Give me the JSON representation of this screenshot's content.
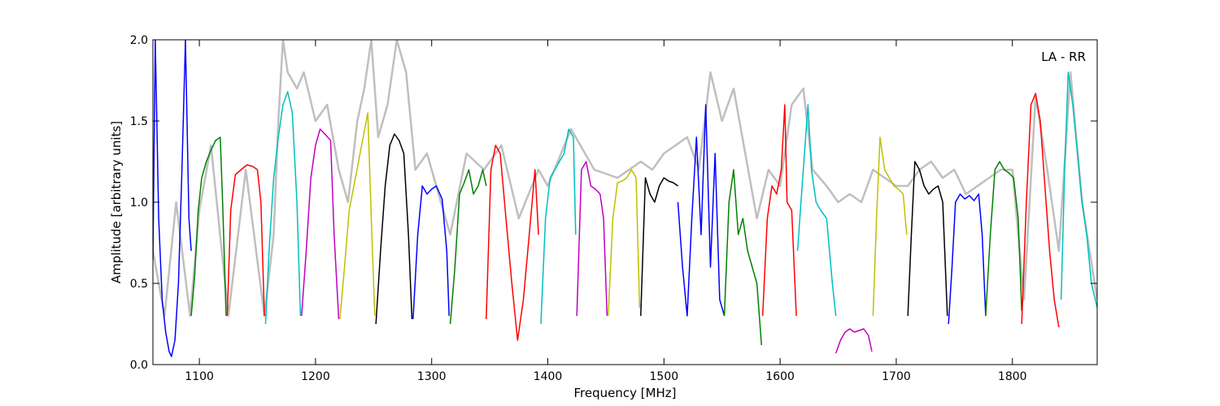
{
  "chart_data": {
    "type": "line",
    "title": "",
    "annotation": "LA - RR",
    "xlabel": "Frequency [MHz]",
    "ylabel": "Amplitude [arbitrary units]",
    "xlim": [
      1060,
      1873
    ],
    "ylim": [
      0.0,
      2.0
    ],
    "xticks": [
      1100,
      1200,
      1300,
      1400,
      1500,
      1600,
      1700,
      1800
    ],
    "yticks": [
      0.0,
      0.5,
      1.0,
      1.5,
      2.0
    ],
    "grid": false,
    "colors": {
      "background_trace": "#bfbfbf",
      "blue": "#0000ff",
      "green": "#008000",
      "red": "#ff0000",
      "cyan": "#00bfbf",
      "magenta": "#bf00bf",
      "yellow": "#bfbf00",
      "black": "#000000"
    },
    "series": [
      {
        "color": "blue",
        "x": [
          1060,
          1062,
          1065,
          1068,
          1071,
          1074,
          1076,
          1079,
          1082,
          1085,
          1088,
          1091,
          1093
        ],
        "y": [
          0.65,
          2.0,
          0.9,
          0.4,
          0.2,
          0.08,
          0.05,
          0.15,
          0.5,
          1.2,
          2.0,
          0.9,
          0.7
        ]
      },
      {
        "color": "green",
        "x": [
          1093,
          1096,
          1099,
          1102,
          1106,
          1110,
          1114,
          1118,
          1120,
          1123
        ],
        "y": [
          0.3,
          0.55,
          0.95,
          1.15,
          1.25,
          1.32,
          1.38,
          1.4,
          1.0,
          0.3
        ]
      },
      {
        "color": "red",
        "x": [
          1124,
          1127,
          1131,
          1136,
          1141,
          1146,
          1150,
          1153,
          1156
        ],
        "y": [
          0.3,
          0.95,
          1.17,
          1.2,
          1.23,
          1.22,
          1.2,
          1.0,
          0.3
        ]
      },
      {
        "color": "cyan",
        "x": [
          1157,
          1160,
          1164,
          1168,
          1172,
          1176,
          1180,
          1184,
          1187
        ],
        "y": [
          0.25,
          0.7,
          1.15,
          1.4,
          1.6,
          1.68,
          1.55,
          1.0,
          0.3
        ]
      },
      {
        "color": "magenta",
        "x": [
          1188,
          1192,
          1196,
          1200,
          1204,
          1208,
          1213,
          1216,
          1220
        ],
        "y": [
          0.3,
          0.7,
          1.15,
          1.35,
          1.45,
          1.42,
          1.38,
          0.8,
          0.28
        ]
      },
      {
        "color": "yellow",
        "x": [
          1221,
          1225,
          1229,
          1233,
          1237,
          1241,
          1245,
          1248,
          1251
        ],
        "y": [
          0.28,
          0.6,
          0.95,
          1.1,
          1.25,
          1.4,
          1.55,
          0.9,
          0.3
        ]
      },
      {
        "color": "black",
        "x": [
          1252,
          1256,
          1260,
          1264,
          1268,
          1272,
          1276,
          1280,
          1283
        ],
        "y": [
          0.25,
          0.7,
          1.1,
          1.35,
          1.42,
          1.38,
          1.3,
          0.8,
          0.28
        ]
      },
      {
        "color": "blue",
        "x": [
          1284,
          1288,
          1292,
          1296,
          1300,
          1304,
          1309,
          1313,
          1315
        ],
        "y": [
          0.28,
          0.8,
          1.1,
          1.05,
          1.08,
          1.1,
          1.02,
          0.7,
          0.3
        ]
      },
      {
        "color": "green",
        "x": [
          1316,
          1320,
          1324,
          1328,
          1332,
          1336,
          1340,
          1344,
          1347
        ],
        "y": [
          0.25,
          0.6,
          1.05,
          1.12,
          1.2,
          1.05,
          1.1,
          1.2,
          1.1
        ]
      },
      {
        "color": "red",
        "x": [
          1347,
          1351,
          1355,
          1359,
          1364,
          1369,
          1374,
          1379,
          1384,
          1389,
          1392
        ],
        "y": [
          0.28,
          1.2,
          1.35,
          1.3,
          0.9,
          0.5,
          0.15,
          0.4,
          0.8,
          1.2,
          0.8
        ]
      },
      {
        "color": "cyan",
        "x": [
          1394,
          1398,
          1402,
          1406,
          1410,
          1414,
          1418,
          1422,
          1424
        ],
        "y": [
          0.25,
          0.9,
          1.15,
          1.2,
          1.25,
          1.3,
          1.45,
          1.4,
          0.8
        ]
      },
      {
        "color": "magenta",
        "x": [
          1425,
          1429,
          1433,
          1437,
          1441,
          1445,
          1448,
          1451
        ],
        "y": [
          0.3,
          1.2,
          1.25,
          1.1,
          1.08,
          1.05,
          0.9,
          0.3
        ]
      },
      {
        "color": "yellow",
        "x": [
          1452,
          1456,
          1460,
          1464,
          1468,
          1472,
          1476,
          1479
        ],
        "y": [
          0.3,
          0.9,
          1.12,
          1.13,
          1.15,
          1.2,
          1.15,
          0.35
        ]
      },
      {
        "color": "black",
        "x": [
          1480,
          1484,
          1488,
          1492,
          1496,
          1500,
          1504,
          1508,
          1512
        ],
        "y": [
          0.3,
          1.15,
          1.05,
          1.0,
          1.1,
          1.15,
          1.13,
          1.12,
          1.1
        ]
      },
      {
        "color": "blue",
        "x": [
          1512,
          1516,
          1520,
          1524,
          1528,
          1532,
          1536,
          1540,
          1544,
          1548,
          1552
        ],
        "y": [
          1.0,
          0.6,
          0.3,
          0.9,
          1.4,
          0.8,
          1.6,
          0.6,
          1.3,
          0.4,
          0.3
        ]
      },
      {
        "color": "green",
        "x": [
          1552,
          1556,
          1560,
          1564,
          1568,
          1572,
          1576,
          1580,
          1584
        ],
        "y": [
          0.3,
          1.0,
          1.2,
          0.8,
          0.9,
          0.7,
          0.6,
          0.5,
          0.12
        ]
      },
      {
        "color": "red",
        "x": [
          1585,
          1589,
          1593,
          1597,
          1601,
          1604,
          1606,
          1610,
          1614
        ],
        "y": [
          0.3,
          0.9,
          1.1,
          1.05,
          1.2,
          1.6,
          1.0,
          0.95,
          0.3
        ]
      },
      {
        "color": "cyan",
        "x": [
          1615,
          1618,
          1621,
          1624,
          1627,
          1631,
          1635,
          1640,
          1645,
          1648
        ],
        "y": [
          0.7,
          1.0,
          1.3,
          1.6,
          1.2,
          1.0,
          0.95,
          0.9,
          0.5,
          0.3
        ]
      },
      {
        "color": "magenta",
        "x": [
          1648,
          1652,
          1656,
          1660,
          1664,
          1668,
          1672,
          1676,
          1679
        ],
        "y": [
          0.07,
          0.15,
          0.2,
          0.22,
          0.2,
          0.21,
          0.22,
          0.18,
          0.08
        ]
      },
      {
        "color": "yellow",
        "x": [
          1680,
          1683,
          1686,
          1690,
          1694,
          1698,
          1702,
          1706,
          1709
        ],
        "y": [
          0.3,
          0.9,
          1.4,
          1.2,
          1.15,
          1.1,
          1.08,
          1.05,
          0.8
        ]
      },
      {
        "color": "black",
        "x": [
          1710,
          1713,
          1716,
          1720,
          1724,
          1728,
          1732,
          1736,
          1740,
          1744
        ],
        "y": [
          0.3,
          0.8,
          1.25,
          1.2,
          1.1,
          1.05,
          1.08,
          1.1,
          1.0,
          0.3
        ]
      },
      {
        "color": "blue",
        "x": [
          1745,
          1748,
          1751,
          1755,
          1759,
          1763,
          1767,
          1771,
          1774,
          1777
        ],
        "y": [
          0.25,
          0.6,
          1.0,
          1.05,
          1.02,
          1.04,
          1.01,
          1.05,
          0.8,
          0.3
        ]
      },
      {
        "color": "green",
        "x": [
          1777,
          1781,
          1785,
          1789,
          1793,
          1797,
          1801,
          1805,
          1808
        ],
        "y": [
          0.3,
          0.8,
          1.2,
          1.25,
          1.2,
          1.18,
          1.15,
          0.9,
          0.33
        ]
      },
      {
        "color": "red",
        "x": [
          1808,
          1812,
          1816,
          1820,
          1824,
          1828,
          1832,
          1836,
          1840
        ],
        "y": [
          0.25,
          1.0,
          1.6,
          1.67,
          1.5,
          1.1,
          0.7,
          0.4,
          0.23
        ]
      },
      {
        "color": "cyan",
        "x": [
          1842,
          1845,
          1848,
          1852,
          1856,
          1860,
          1864,
          1868,
          1873
        ],
        "y": [
          0.4,
          1.2,
          1.8,
          1.6,
          1.3,
          1.0,
          0.8,
          0.5,
          0.35
        ]
      }
    ],
    "background": {
      "color": "background_trace",
      "x": [
        1060,
        1070,
        1080,
        1092,
        1100,
        1110,
        1125,
        1140,
        1156,
        1164,
        1168,
        1172,
        1176,
        1184,
        1190,
        1200,
        1210,
        1220,
        1228,
        1236,
        1242,
        1248,
        1254,
        1262,
        1270,
        1278,
        1286,
        1296,
        1306,
        1316,
        1330,
        1345,
        1360,
        1375,
        1392,
        1400,
        1420,
        1440,
        1460,
        1480,
        1490,
        1500,
        1510,
        1520,
        1530,
        1540,
        1550,
        1560,
        1570,
        1580,
        1590,
        1600,
        1610,
        1620,
        1628,
        1640,
        1650,
        1660,
        1670,
        1680,
        1690,
        1700,
        1710,
        1720,
        1730,
        1740,
        1750,
        1760,
        1770,
        1780,
        1790,
        1800,
        1810,
        1820,
        1830,
        1840,
        1850,
        1860,
        1873
      ],
      "y": [
        0.7,
        0.3,
        1.0,
        0.3,
        0.95,
        1.35,
        0.3,
        1.2,
        0.3,
        0.8,
        1.5,
        2.0,
        1.8,
        1.7,
        1.8,
        1.5,
        1.6,
        1.2,
        1.0,
        1.5,
        1.7,
        2.0,
        1.4,
        1.6,
        2.0,
        1.8,
        1.2,
        1.3,
        1.05,
        0.8,
        1.3,
        1.2,
        1.35,
        0.9,
        1.2,
        1.1,
        1.45,
        1.2,
        1.15,
        1.25,
        1.2,
        1.3,
        1.35,
        1.4,
        1.2,
        1.8,
        1.5,
        1.7,
        1.3,
        0.9,
        1.2,
        1.1,
        1.6,
        1.7,
        1.2,
        1.1,
        1.0,
        1.05,
        1.0,
        1.2,
        1.15,
        1.1,
        1.1,
        1.2,
        1.25,
        1.15,
        1.2,
        1.05,
        1.1,
        1.15,
        1.2,
        1.2,
        0.4,
        1.65,
        1.2,
        0.7,
        1.8,
        1.0,
        0.4
      ]
    }
  }
}
